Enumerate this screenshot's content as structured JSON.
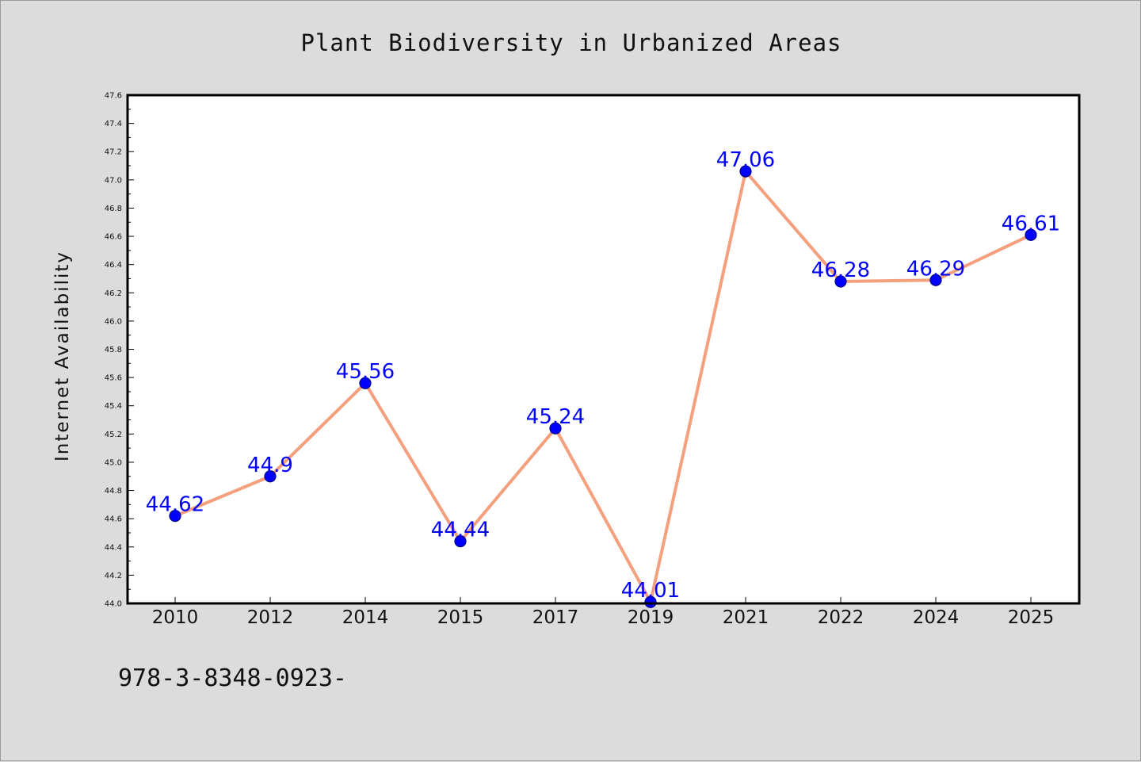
{
  "chart_data": {
    "type": "line",
    "title": "Plant Biodiversity in Urbanized Areas",
    "xlabel": "",
    "ylabel": "Internet Availability",
    "categories": [
      "2010",
      "2012",
      "2014",
      "2015",
      "2017",
      "2019",
      "2021",
      "2022",
      "2024",
      "2025"
    ],
    "series": [
      {
        "values": [
          44.62,
          44.9,
          45.56,
          44.44,
          45.24,
          44.01,
          47.06,
          46.28,
          46.29,
          46.61
        ],
        "labels": [
          "44.62",
          "44.9",
          "45.56",
          "44.44",
          "45.24",
          "44.01",
          "47.06",
          "46.28",
          "46.29",
          "46.61"
        ]
      }
    ],
    "ylim": [
      44.0,
      47.6
    ],
    "yticks": [
      "44.0",
      "44.2",
      "44.4",
      "44.6",
      "44.8",
      "45.0",
      "45.2",
      "45.4",
      "45.6",
      "45.8",
      "46.0",
      "46.2",
      "46.4",
      "46.6",
      "46.8",
      "47.0",
      "47.2",
      "47.4",
      "47.6"
    ],
    "grid": false,
    "legend": "none",
    "colors": {
      "line": "#f4a07d",
      "marker": "#0000ff",
      "marker_edge": "#000080",
      "data_label": "#0000ff",
      "axes_face": "#ffffff",
      "figure_face": "#dcdcdc"
    }
  },
  "footer": {
    "text": "978-3-8348-0923-"
  }
}
